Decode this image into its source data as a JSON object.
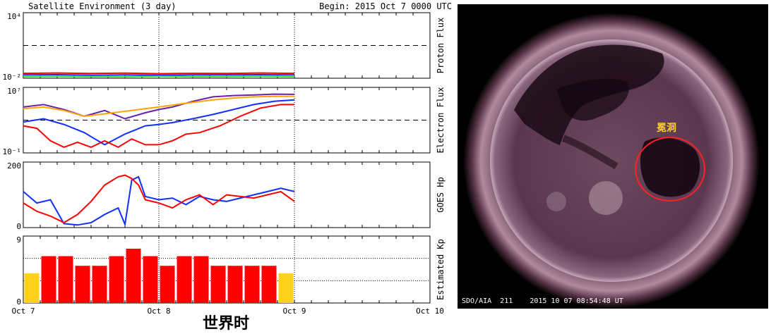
{
  "header": {
    "title": "Satellite Environment (3 day)",
    "begin": "Begin:  2015 Oct 7 0000  UTC"
  },
  "xaxis": {
    "ticks": [
      "Oct 7",
      "Oct 8",
      "Oct 9",
      "Oct 10"
    ],
    "caption": "世界时"
  },
  "colors": {
    "red": "#ff0000",
    "blue": "#1030ff",
    "green": "#33dd33",
    "purple": "#6a1fb0",
    "orange": "#ffa500",
    "yellow": "#ffd21a",
    "annotation": "#ffd21a",
    "circle": "#ff2020"
  },
  "chart_data": [
    {
      "type": "line",
      "panel": "proton",
      "ylabel": "Proton Flux",
      "scale": "log",
      "ylim": [
        0.01,
        10000
      ],
      "ytick_labels": [
        "10⁴",
        "10⁻²"
      ],
      "threshold": 10,
      "x_unit": "days since Oct 7 0000 UTC",
      "series": [
        {
          "color": "red",
          "x": [
            0,
            0.25,
            0.5,
            0.75,
            1.0,
            1.25,
            1.5,
            1.75,
            2.0
          ],
          "y": [
            0.028,
            0.03,
            0.027,
            0.029,
            0.026,
            0.028,
            0.027,
            0.03,
            0.028
          ]
        },
        {
          "color": "blue",
          "x": [
            0,
            0.25,
            0.5,
            0.75,
            1.0,
            1.25,
            1.5,
            1.75,
            2.0
          ],
          "y": [
            0.02,
            0.021,
            0.019,
            0.02,
            0.019,
            0.02,
            0.02,
            0.021,
            0.02
          ]
        },
        {
          "color": "green",
          "x": [
            0,
            0.25,
            0.5,
            0.75,
            1.0,
            1.25,
            1.5,
            1.75,
            2.0
          ],
          "y": [
            0.014,
            0.015,
            0.014,
            0.014,
            0.015,
            0.014,
            0.014,
            0.015,
            0.014
          ]
        }
      ]
    },
    {
      "type": "line",
      "panel": "electron",
      "ylabel": "Electron Flux",
      "scale": "log",
      "ylim": [
        0.1,
        10000000
      ],
      "ytick_labels": [
        "10⁷",
        "10⁻¹"
      ],
      "threshold": 1000,
      "x_unit": "days since Oct 7 0000 UTC",
      "series": [
        {
          "color": "purple",
          "x": [
            0,
            0.15,
            0.3,
            0.45,
            0.6,
            0.75,
            0.9,
            1.0,
            1.1,
            1.25,
            1.4,
            1.55,
            1.7,
            1.85,
            2.0
          ],
          "y": [
            40000,
            80000,
            20000,
            3000,
            15000,
            1500,
            8000,
            20000,
            40000,
            200000,
            700000,
            1000000,
            1200000,
            1500000,
            1400000
          ]
        },
        {
          "color": "orange",
          "x": [
            0,
            0.15,
            0.3,
            0.45,
            0.6,
            0.75,
            0.9,
            1.0,
            1.1,
            1.25,
            1.4,
            1.55,
            1.7,
            1.85,
            2.0
          ],
          "y": [
            25000,
            40000,
            15000,
            3000,
            6000,
            12000,
            25000,
            40000,
            70000,
            150000,
            300000,
            500000,
            700000,
            800000,
            800000
          ]
        },
        {
          "color": "blue",
          "x": [
            0,
            0.15,
            0.3,
            0.45,
            0.6,
            0.75,
            0.9,
            1.0,
            1.1,
            1.25,
            1.4,
            1.55,
            1.7,
            1.85,
            2.0
          ],
          "y": [
            600,
            1500,
            300,
            30,
            1,
            20,
            200,
            300,
            500,
            1500,
            5000,
            20000,
            80000,
            200000,
            300000
          ]
        },
        {
          "color": "red",
          "x": [
            0,
            0.1,
            0.2,
            0.3,
            0.4,
            0.5,
            0.6,
            0.7,
            0.8,
            0.9,
            1.0,
            1.1,
            1.2,
            1.3,
            1.45,
            1.6,
            1.75,
            1.9,
            2.0
          ],
          "y": [
            200,
            100,
            3,
            0.5,
            2,
            0.5,
            3,
            0.5,
            5,
            1,
            1,
            3,
            20,
            30,
            200,
            3000,
            30000,
            80000,
            80000
          ]
        }
      ]
    },
    {
      "type": "line",
      "panel": "goes-hp",
      "ylabel": "GOES Hp",
      "scale": "linear",
      "ylim": [
        0,
        200
      ],
      "ytick_labels": [
        "200",
        "0"
      ],
      "x_unit": "days since Oct 7 0000 UTC",
      "series": [
        {
          "color": "blue",
          "x": [
            0,
            0.1,
            0.2,
            0.3,
            0.4,
            0.5,
            0.6,
            0.7,
            0.75,
            0.8,
            0.85,
            0.9,
            1.0,
            1.1,
            1.2,
            1.3,
            1.4,
            1.5,
            1.6,
            1.7,
            1.8,
            1.9,
            2.0
          ],
          "y": [
            110,
            75,
            85,
            12,
            8,
            15,
            40,
            60,
            10,
            145,
            155,
            95,
            85,
            90,
            70,
            95,
            85,
            80,
            90,
            100,
            110,
            120,
            110
          ]
        },
        {
          "color": "red",
          "x": [
            0,
            0.1,
            0.2,
            0.3,
            0.4,
            0.5,
            0.6,
            0.7,
            0.75,
            0.8,
            0.85,
            0.9,
            1.0,
            1.1,
            1.2,
            1.3,
            1.4,
            1.5,
            1.6,
            1.7,
            1.8,
            1.9,
            2.0
          ],
          "y": [
            75,
            50,
            35,
            15,
            40,
            80,
            130,
            155,
            160,
            150,
            130,
            85,
            75,
            60,
            85,
            100,
            70,
            100,
            95,
            90,
            100,
            110,
            80
          ]
        }
      ]
    },
    {
      "type": "bar",
      "panel": "kp",
      "ylabel": "Estimated Kp",
      "ylim": [
        0,
        9
      ],
      "ytick_labels": [
        "9",
        "0"
      ],
      "bar_width_hours": 3,
      "values": [
        4,
        6.3,
        6.3,
        5,
        5,
        6.3,
        7.3,
        6.3,
        5,
        6.3,
        6.3,
        5,
        5,
        5,
        5,
        4
      ],
      "bar_colors": [
        "yellow",
        "red",
        "red",
        "red",
        "red",
        "red",
        "red",
        "red",
        "red",
        "red",
        "red",
        "red",
        "red",
        "red",
        "red",
        "yellow"
      ]
    }
  ],
  "sun_image": {
    "annotation": "冕洞",
    "caption": "SDO/AIA  211    2015 10 07 08:54:48 UT"
  }
}
